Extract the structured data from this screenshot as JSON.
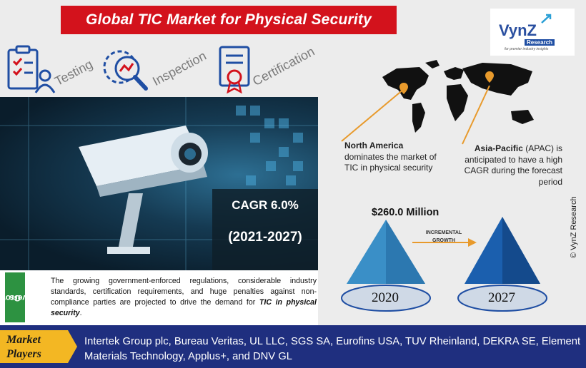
{
  "header": {
    "title": "Global TIC Market for Physical Security"
  },
  "services": [
    {
      "label": "Testing",
      "icon": "checklist-user-icon"
    },
    {
      "label": "Inspection",
      "icon": "gear-magnifier-icon"
    },
    {
      "label": "Certification",
      "icon": "certificate-icon"
    }
  ],
  "cagr": {
    "line1": "CAGR 6.0%",
    "line2": "(2021-2027)"
  },
  "growth_drivers": {
    "tab_line1": "Growth",
    "tab_line2": "Drivers",
    "text_main": "The growing government-enforced regulations, considerable industry standards, certification requirements, and huge penalties against non-compliance parties are projected to drive the demand for ",
    "text_emphasis": "TIC in physical security",
    "text_end": "."
  },
  "logo": {
    "main": "VynZ",
    "sub": "Research",
    "tagline": "for premier industry insights"
  },
  "regions": {
    "north_america": {
      "name": "North America",
      "text": "dominates the market of TIC in physical security"
    },
    "apac": {
      "name": "Asia-Pacific",
      "text": "(APAC) is anticipated to have a high CAGR during the forecast period"
    }
  },
  "market": {
    "value_label": "$260.0 Million",
    "growth_label_1": "INCREMENTAL",
    "growth_label_2": "GROWTH",
    "year_start": "2020",
    "year_end": "2027"
  },
  "copyright": "© VynZ Research",
  "market_players": {
    "badge_line1": "Market",
    "badge_line2": "Players",
    "list": "Intertek Group plc, Bureau Veritas, UL LLC, SGS SA, Eurofins USA, TUV Rheinland, DEKRA SE, Element Materials Technology, Applus+, and DNV GL"
  },
  "colors": {
    "title_red": "#d3121c",
    "drivers_green": "#2d9241",
    "players_navy": "#1f2f7f",
    "players_badge": "#f3b723",
    "pyramid_light": "#3a8fc7",
    "pyramid_dark": "#1b5fae",
    "accent_orange": "#e89a2c"
  }
}
